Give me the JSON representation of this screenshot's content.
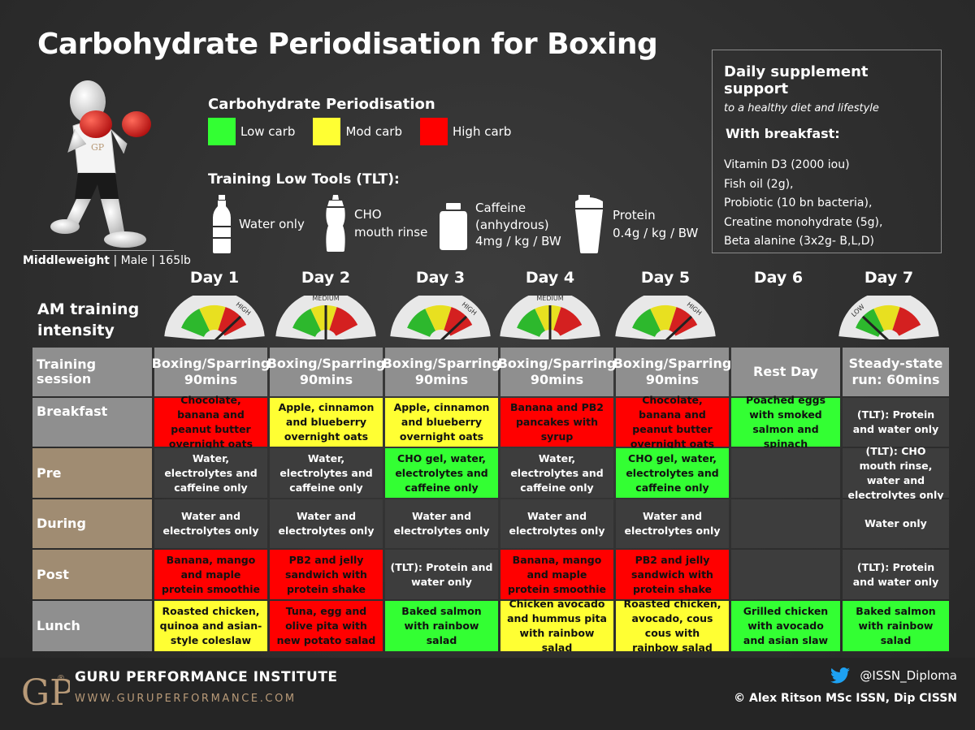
{
  "title": "Carbohydrate Periodisation for Boxing",
  "athlete": {
    "weight_class": "Middleweight",
    "details": "| Male | 165lb"
  },
  "legend": {
    "title": "Carbohydrate Periodisation",
    "items": [
      {
        "label": "Low carb",
        "color": "#33ff33"
      },
      {
        "label": "Mod carb",
        "color": "#ffff33"
      },
      {
        "label": "High carb",
        "color": "#ff0000"
      }
    ]
  },
  "tlt": {
    "title": "Training Low Tools (TLT):",
    "tools": [
      {
        "icon": "water-bottle-icon",
        "line1": "Water only",
        "line2": "",
        "line3": ""
      },
      {
        "icon": "sports-bottle-icon",
        "line1": "CHO",
        "line2": "mouth rinse",
        "line3": ""
      },
      {
        "icon": "supplement-tub-icon",
        "line1": "Caffeine",
        "line2": "(anhydrous)",
        "line3": "4mg / kg / BW"
      },
      {
        "icon": "protein-shaker-icon",
        "line1": "Protein",
        "line2": "0.4g / kg / BW",
        "line3": ""
      }
    ]
  },
  "supplements": {
    "title": "Daily supplement support",
    "subtitle": "to a healthy diet and lifestyle",
    "with_label": "With breakfast:",
    "items": [
      "Vitamin D3 (2000 iou)",
      "Fish oil (2g),",
      "Probiotic (10 bn bacteria),",
      "Creatine monohydrate (5g),",
      "Beta alanine (3x2g- B,L,D)"
    ]
  },
  "am_label_line1": "AM training",
  "am_label_line2": "intensity",
  "days": [
    {
      "label": "Day 1",
      "intensity": "HIGH"
    },
    {
      "label": "Day 2",
      "intensity": "MEDIUM"
    },
    {
      "label": "Day 3",
      "intensity": "HIGH"
    },
    {
      "label": "Day 4",
      "intensity": "MEDIUM"
    },
    {
      "label": "Day 5",
      "intensity": "HIGH"
    },
    {
      "label": "Day 6",
      "intensity": ""
    },
    {
      "label": "Day 7",
      "intensity": "LOW"
    }
  ],
  "table": {
    "rows": [
      {
        "label": "Training session",
        "label_color": "gray",
        "cells": [
          {
            "text": "Boxing/Sparring 90mins",
            "color": "hdr"
          },
          {
            "text": "Boxing/Sparring 90mins",
            "color": "hdr"
          },
          {
            "text": "Boxing/Sparring 90mins",
            "color": "hdr"
          },
          {
            "text": "Boxing/Sparring 90mins",
            "color": "hdr"
          },
          {
            "text": "Boxing/Sparring 90mins",
            "color": "hdr"
          },
          {
            "text": "Rest Day",
            "color": "hdr"
          },
          {
            "text": "Steady-state run: 60mins",
            "color": "hdr"
          }
        ]
      },
      {
        "label": "Breakfast",
        "label_color": "gray",
        "cells": [
          {
            "text": "Chocolate, banana and peanut butter overnight oats",
            "color": "red"
          },
          {
            "text": "Apple, cinnamon and blueberry overnight oats",
            "color": "yellow"
          },
          {
            "text": "Apple, cinnamon and blueberry overnight oats",
            "color": "yellow"
          },
          {
            "text": "Banana and PB2 pancakes with syrup",
            "color": "red"
          },
          {
            "text": "Chocolate, banana and peanut butter overnight oats",
            "color": "red"
          },
          {
            "text": "Poached eggs with smoked salmon and spinach",
            "color": "green"
          },
          {
            "text": "(TLT): Protein and water only",
            "color": "dark"
          }
        ]
      },
      {
        "label": "Pre",
        "label_color": "tan",
        "cells": [
          {
            "text": "Water, electrolytes and caffeine only",
            "color": "dark"
          },
          {
            "text": "Water, electrolytes and caffeine only",
            "color": "dark"
          },
          {
            "text": "CHO gel, water, electrolytes and caffeine only",
            "color": "green"
          },
          {
            "text": "Water, electrolytes and caffeine only",
            "color": "dark"
          },
          {
            "text": "CHO gel, water, electrolytes and caffeine only",
            "color": "green"
          },
          {
            "text": "",
            "color": "dark"
          },
          {
            "text": "(TLT): CHO mouth rinse, water and electrolytes only",
            "color": "dark"
          }
        ]
      },
      {
        "label": "During",
        "label_color": "tan",
        "cells": [
          {
            "text": "Water and electrolytes only",
            "color": "dark"
          },
          {
            "text": "Water and electrolytes only",
            "color": "dark"
          },
          {
            "text": "Water and electrolytes only",
            "color": "dark"
          },
          {
            "text": "Water and electrolytes only",
            "color": "dark"
          },
          {
            "text": "Water and electrolytes only",
            "color": "dark"
          },
          {
            "text": "",
            "color": "dark"
          },
          {
            "text": "Water only",
            "color": "dark"
          }
        ]
      },
      {
        "label": "Post",
        "label_color": "tan",
        "cells": [
          {
            "text": "Banana, mango and maple protein smoothie",
            "color": "red"
          },
          {
            "text": "PB2 and jelly sandwich with protein shake",
            "color": "red"
          },
          {
            "text": "(TLT): Protein and water only",
            "color": "dark"
          },
          {
            "text": "Banana, mango and maple protein smoothie",
            "color": "red"
          },
          {
            "text": "PB2 and jelly sandwich with protein shake",
            "color": "red"
          },
          {
            "text": "",
            "color": "dark"
          },
          {
            "text": "(TLT): Protein and water only",
            "color": "dark"
          }
        ]
      },
      {
        "label": "Lunch",
        "label_color": "gray",
        "cells": [
          {
            "text": "Roasted chicken, quinoa and asian-style coleslaw",
            "color": "yellow"
          },
          {
            "text": "Tuna, egg and olive pita with new potato salad",
            "color": "red"
          },
          {
            "text": "Baked salmon with rainbow salad",
            "color": "green"
          },
          {
            "text": "Chicken avocado and hummus pita with rainbow salad",
            "color": "yellow"
          },
          {
            "text": "Roasted chicken, avocado, cous cous with rainbow salad",
            "color": "yellow"
          },
          {
            "text": "Grilled chicken with avocado and asian slaw",
            "color": "green"
          },
          {
            "text": "Baked salmon with rainbow salad",
            "color": "green"
          }
        ]
      }
    ]
  },
  "footer": {
    "logo_text": "GP",
    "registered": "®",
    "institute": "GURU PERFORMANCE INSTITUTE",
    "url": "WWW.GURUPERFORMANCE.COM",
    "twitter_handle": "@ISSN_Diploma",
    "credit": "© Alex Ritson MSc ISSN, Dip CISSN"
  }
}
